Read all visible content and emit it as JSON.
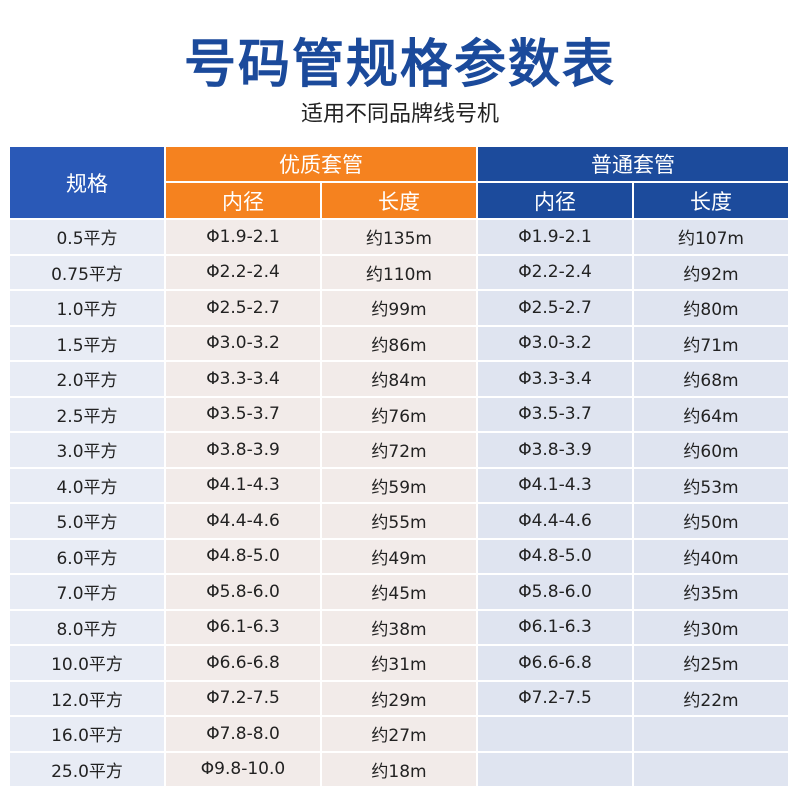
{
  "header": {
    "title": "号码管规格参数表",
    "subtitle": "适用不同品牌线号机"
  },
  "table": {
    "spec_header": "规格",
    "groups": [
      {
        "name": "优质套管",
        "columns": [
          "内径",
          "长度"
        ]
      },
      {
        "name": "普通套管",
        "columns": [
          "内径",
          "长度"
        ]
      }
    ],
    "rows": [
      [
        "0.5平方",
        "Φ1.9-2.1",
        "约135m",
        "Φ1.9-2.1",
        "约107m"
      ],
      [
        "0.75平方",
        "Φ2.2-2.4",
        "约110m",
        "Φ2.2-2.4",
        "约92m"
      ],
      [
        "1.0平方",
        "Φ2.5-2.7",
        "约99m",
        "Φ2.5-2.7",
        "约80m"
      ],
      [
        "1.5平方",
        "Φ3.0-3.2",
        "约86m",
        "Φ3.0-3.2",
        "约71m"
      ],
      [
        "2.0平方",
        "Φ3.3-3.4",
        "约84m",
        "Φ3.3-3.4",
        "约68m"
      ],
      [
        "2.5平方",
        "Φ3.5-3.7",
        "约76m",
        "Φ3.5-3.7",
        "约64m"
      ],
      [
        "3.0平方",
        "Φ3.8-3.9",
        "约72m",
        "Φ3.8-3.9",
        "约60m"
      ],
      [
        "4.0平方",
        "Φ4.1-4.3",
        "约59m",
        "Φ4.1-4.3",
        "约53m"
      ],
      [
        "5.0平方",
        "Φ4.4-4.6",
        "约55m",
        "Φ4.4-4.6",
        "约50m"
      ],
      [
        "6.0平方",
        "Φ4.8-5.0",
        "约49m",
        "Φ4.8-5.0",
        "约40m"
      ],
      [
        "7.0平方",
        "Φ5.8-6.0",
        "约45m",
        "Φ5.8-6.0",
        "约35m"
      ],
      [
        "8.0平方",
        "Φ6.1-6.3",
        "约38m",
        "Φ6.1-6.3",
        "约30m"
      ],
      [
        "10.0平方",
        "Φ6.6-6.8",
        "约31m",
        "Φ6.6-6.8",
        "约25m"
      ],
      [
        "12.0平方",
        "Φ7.2-7.5",
        "约29m",
        "Φ7.2-7.5",
        "约22m"
      ],
      [
        "16.0平方",
        "Φ7.8-8.0",
        "约27m",
        null,
        null
      ],
      [
        "25.0平方",
        "Φ9.8-10.0",
        "约18m",
        null,
        null
      ]
    ]
  }
}
